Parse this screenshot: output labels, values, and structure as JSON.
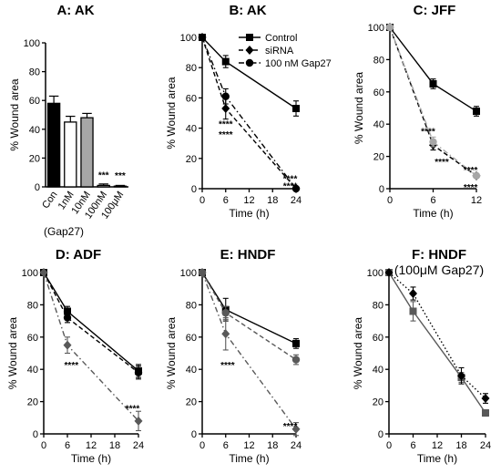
{
  "chart_data": [
    {
      "id": "A",
      "type": "bar",
      "title": "A: AK",
      "ylabel": "% Wound area",
      "ylim": [
        0,
        100
      ],
      "yticks": [
        0,
        20,
        40,
        60,
        80,
        100
      ],
      "categories": [
        "Con",
        "1nM",
        "10nM",
        "100nM",
        "100μM"
      ],
      "values": [
        58,
        45,
        48,
        1,
        0.5
      ],
      "errors": [
        5,
        4,
        3,
        1,
        0.5
      ],
      "bar_colors": [
        "#000000",
        "#ffffff",
        "#a6a6a6",
        "#ffffff",
        "#ffffff"
      ],
      "significance": [
        "",
        "",
        "",
        "***",
        "***"
      ],
      "group_label": "(Gap27)"
    },
    {
      "id": "B",
      "type": "line",
      "title": "B: AK",
      "xlabel": "Time (h)",
      "ylabel": "% Wound area",
      "xlim": [
        0,
        24
      ],
      "xticks": [
        0,
        6,
        12,
        18,
        24
      ],
      "ylim": [
        0,
        100
      ],
      "yticks": [
        0,
        20,
        40,
        60,
        80,
        100
      ],
      "legend": [
        "Control",
        "siRNA",
        "100 nM Gap27"
      ],
      "series": [
        {
          "name": "Control",
          "x": [
            0,
            6,
            24
          ],
          "y": [
            100,
            84,
            53
          ],
          "err": [
            0,
            4,
            5
          ],
          "marker": "square",
          "dash": "solid",
          "color": "#000000"
        },
        {
          "name": "siRNA",
          "x": [
            0,
            6,
            24
          ],
          "y": [
            100,
            53,
            0
          ],
          "err": [
            0,
            7,
            0
          ],
          "marker": "diamond",
          "dash": "dashed",
          "color": "#000000"
        },
        {
          "name": "100 nM Gap27",
          "x": [
            0,
            6,
            24
          ],
          "y": [
            100,
            61,
            0
          ],
          "err": [
            0,
            5,
            0
          ],
          "marker": "circle",
          "dash": "dashdot",
          "color": "#000000"
        }
      ],
      "annotations": [
        {
          "text": "****",
          "x": 6,
          "y": 43
        },
        {
          "text": "****",
          "x": 6,
          "y": 36
        },
        {
          "text": "****",
          "x": 22.5,
          "y": 7
        },
        {
          "text": "****",
          "x": 22.5,
          "y": 2
        }
      ]
    },
    {
      "id": "C",
      "type": "line",
      "title": "C: JFF",
      "xlabel": "Time (h)",
      "ylabel": "% Wound area",
      "xlim": [
        0,
        12
      ],
      "xticks": [
        0,
        6,
        12
      ],
      "ylim": [
        0,
        100
      ],
      "yticks": [
        0,
        20,
        40,
        60,
        80,
        100
      ],
      "series": [
        {
          "x": [
            0,
            6,
            12
          ],
          "y": [
            100,
            65,
            48
          ],
          "err": [
            0,
            3,
            3
          ],
          "marker": "square",
          "dash": "solid",
          "color": "#000000"
        },
        {
          "x": [
            0,
            6,
            12
          ],
          "y": [
            100,
            27,
            8
          ],
          "err": [
            0,
            3,
            1
          ],
          "marker": "diamond",
          "dash": "dashed",
          "color": "#000000"
        },
        {
          "x": [
            0,
            6,
            12
          ],
          "y": [
            100,
            29,
            8
          ],
          "err": [
            0,
            3,
            1
          ],
          "marker": "circle",
          "dash": "dashdot",
          "color": "#a6a6a6"
        }
      ],
      "annotations": [
        {
          "text": "****",
          "x": 5.3,
          "y": 36
        },
        {
          "text": "****",
          "x": 7.2,
          "y": 17
        },
        {
          "text": "****",
          "x": 11.2,
          "y": 12
        },
        {
          "text": "****",
          "x": 11.2,
          "y": 1
        }
      ]
    },
    {
      "id": "D",
      "type": "line",
      "title": "D: ADF",
      "xlabel": "Time (h)",
      "ylabel": "% Wound area",
      "xlim": [
        0,
        24
      ],
      "xticks": [
        0,
        6,
        12,
        18,
        24
      ],
      "ylim": [
        0,
        100
      ],
      "yticks": [
        0,
        20,
        40,
        60,
        80,
        100
      ],
      "series": [
        {
          "x": [
            0,
            6,
            24
          ],
          "y": [
            100,
            76,
            39
          ],
          "err": [
            0,
            3,
            4
          ],
          "marker": "square",
          "dash": "solid",
          "color": "#000000"
        },
        {
          "x": [
            0,
            6,
            24
          ],
          "y": [
            100,
            72,
            38
          ],
          "err": [
            0,
            3,
            4
          ],
          "marker": "circle",
          "dash": "dashed",
          "color": "#000000"
        },
        {
          "x": [
            0,
            6,
            24
          ],
          "y": [
            100,
            55,
            8
          ],
          "err": [
            0,
            5,
            6
          ],
          "marker": "diamond",
          "dash": "dashdot",
          "color": "#595959"
        }
      ],
      "annotations": [
        {
          "text": "****",
          "x": 7,
          "y": 43
        },
        {
          "text": "****",
          "x": 22.5,
          "y": 16
        }
      ]
    },
    {
      "id": "E",
      "type": "line",
      "title": "E: HNDF",
      "xlabel": "Time (h)",
      "ylabel": "% Wound area",
      "xlim": [
        0,
        24
      ],
      "xticks": [
        0,
        6,
        12,
        18,
        24
      ],
      "ylim": [
        0,
        100
      ],
      "yticks": [
        0,
        20,
        40,
        60,
        80,
        100
      ],
      "series": [
        {
          "x": [
            0,
            6,
            24
          ],
          "y": [
            100,
            77,
            56
          ],
          "err": [
            0,
            7,
            3
          ],
          "marker": "square",
          "dash": "solid",
          "color": "#000000"
        },
        {
          "x": [
            0,
            6,
            24
          ],
          "y": [
            100,
            75,
            46
          ],
          "err": [
            0,
            4,
            3
          ],
          "marker": "circle",
          "dash": "dashed",
          "color": "#595959"
        },
        {
          "x": [
            0,
            6,
            24
          ],
          "y": [
            100,
            62,
            3
          ],
          "err": [
            0,
            10,
            4
          ],
          "marker": "diamond",
          "dash": "dashdot",
          "color": "#595959"
        }
      ],
      "annotations": [
        {
          "text": "****",
          "x": 6.5,
          "y": 43
        },
        {
          "text": "****",
          "x": 22.5,
          "y": 5
        }
      ]
    },
    {
      "id": "F",
      "type": "line",
      "title": "F: HNDF",
      "subtitle": "(100μM Gap27)",
      "xlabel": "Time (h)",
      "ylabel": "% Wound area",
      "xlim": [
        0,
        24
      ],
      "xticks": [
        0,
        6,
        12,
        18,
        24
      ],
      "ylim": [
        0,
        100
      ],
      "yticks": [
        0,
        20,
        40,
        60,
        80,
        100
      ],
      "series": [
        {
          "x": [
            0,
            6,
            18,
            24
          ],
          "y": [
            100,
            76,
            35,
            13
          ],
          "err": [
            0,
            6,
            3,
            2
          ],
          "marker": "square",
          "dash": "solid",
          "color": "#595959"
        },
        {
          "x": [
            0,
            6,
            18,
            24
          ],
          "y": [
            100,
            87,
            36,
            22
          ],
          "err": [
            0,
            4,
            5,
            3
          ],
          "marker": "diamond",
          "dash": "dotted",
          "color": "#000000"
        }
      ],
      "annotations": []
    }
  ]
}
